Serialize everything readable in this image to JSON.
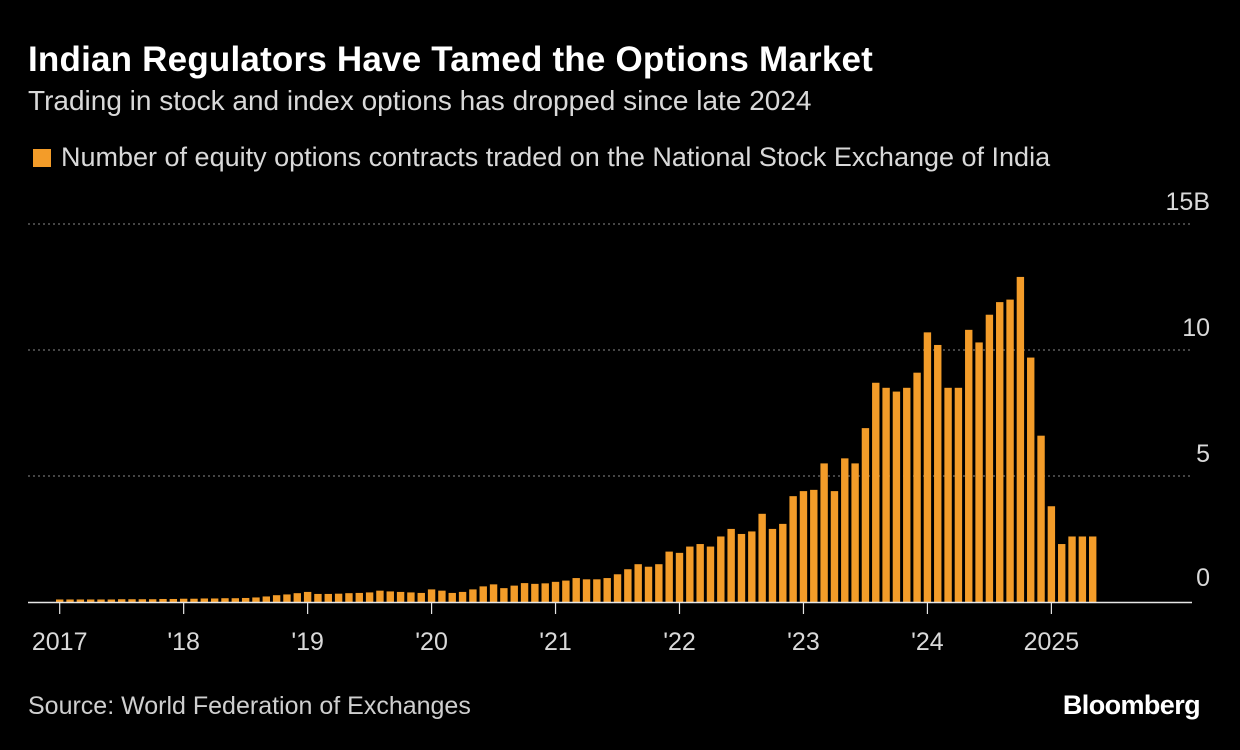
{
  "title": "Indian Regulators Have Tamed the Options Market",
  "subtitle": "Trading in stock and index options has dropped since late 2024",
  "legend": "Number of equity options contracts traded on the National Stock Exchange of India",
  "source": "Source: World Federation of Exchanges",
  "brand": "Bloomberg",
  "colors": {
    "bar": "#f39c29",
    "background": "#000000",
    "grid": "#8a8a8a",
    "text": "#ffffff",
    "muted_text": "#d9d9d9"
  },
  "chart_data": {
    "type": "bar",
    "title": "Indian Regulators Have Tamed the Options Market",
    "subtitle": "Trading in stock and index options has dropped since late 2024",
    "series": [
      {
        "name": "Number of equity options contracts traded on the National Stock Exchange of India",
        "unit": "billion contracts",
        "values": [
          0.1,
          0.1,
          0.1,
          0.1,
          0.1,
          0.1,
          0.11,
          0.11,
          0.11,
          0.11,
          0.12,
          0.12,
          0.13,
          0.13,
          0.14,
          0.14,
          0.15,
          0.15,
          0.16,
          0.18,
          0.22,
          0.27,
          0.3,
          0.35,
          0.4,
          0.32,
          0.32,
          0.33,
          0.35,
          0.36,
          0.38,
          0.45,
          0.42,
          0.4,
          0.38,
          0.36,
          0.5,
          0.45,
          0.36,
          0.4,
          0.5,
          0.62,
          0.7,
          0.55,
          0.65,
          0.75,
          0.72,
          0.74,
          0.8,
          0.85,
          0.95,
          0.9,
          0.9,
          0.95,
          1.1,
          1.3,
          1.5,
          1.4,
          1.5,
          2.0,
          1.95,
          2.2,
          2.3,
          2.2,
          2.6,
          2.9,
          2.7,
          2.8,
          3.5,
          2.9,
          3.1,
          4.2,
          4.4,
          4.45,
          5.5,
          4.4,
          5.7,
          5.5,
          6.9,
          8.7,
          8.5,
          8.35,
          8.5,
          9.1,
          10.7,
          10.2,
          8.5,
          8.5,
          10.8,
          10.3,
          11.4,
          11.9,
          12.0,
          12.9,
          9.7,
          6.6,
          3.8,
          2.3,
          2.6,
          2.6,
          2.6
        ]
      }
    ],
    "x_start": "2017-01",
    "x_frequency": "monthly",
    "x_tick_labels": [
      "2017",
      "'18",
      "'19",
      "'20",
      "'21",
      "'22",
      "'23",
      "'24",
      "2025"
    ],
    "y_tick_labels": [
      "15B",
      "10",
      "5",
      "0"
    ],
    "y_ticks": [
      15,
      10,
      5,
      0
    ],
    "ylim": [
      0,
      15
    ],
    "xlabel": "",
    "ylabel": "",
    "grid": true,
    "y_axis_position": "right",
    "legend_position": "top-left"
  }
}
